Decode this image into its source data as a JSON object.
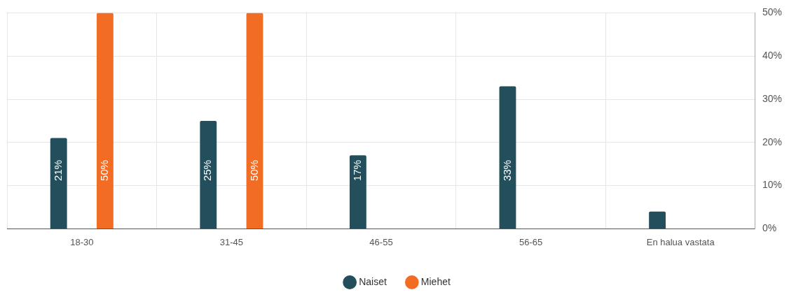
{
  "chart_data": {
    "type": "bar",
    "categories": [
      "18-30",
      "31-45",
      "46-55",
      "56-65",
      "En halua vastata"
    ],
    "series": [
      {
        "name": "Naiset",
        "color": "#234e5c",
        "values": [
          21,
          25,
          17,
          33,
          4
        ],
        "value_labels": [
          "21%",
          "25%",
          "17%",
          "33%",
          null
        ]
      },
      {
        "name": "Miehet",
        "color": "#f26c24",
        "values": [
          50,
          50,
          null,
          null,
          null
        ],
        "value_labels": [
          "50%",
          "50%",
          null,
          null,
          null
        ]
      }
    ],
    "ylim": [
      0,
      50
    ],
    "yticks": [
      {
        "value": 0,
        "label": "0%"
      },
      {
        "value": 10,
        "label": "10%"
      },
      {
        "value": 20,
        "label": "20%"
      },
      {
        "value": 30,
        "label": "30%"
      },
      {
        "value": 40,
        "label": "40%"
      },
      {
        "value": 50,
        "label": "50%"
      }
    ],
    "grid": true,
    "legend": "bottom"
  }
}
